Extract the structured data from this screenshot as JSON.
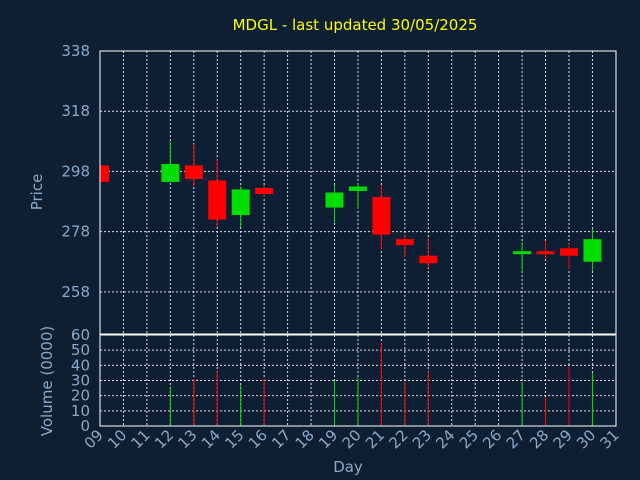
{
  "chart_data": {
    "type": "candlestick",
    "title": "MDGL - last updated 30/05/2025",
    "xlabel": "Day",
    "ylabel": "Price",
    "volume_ylabel": "Volume (0000)",
    "grid": true,
    "up_color": "#00dd00",
    "down_color": "#ff0000",
    "x_ticks": [
      "09",
      "10",
      "11",
      "12",
      "13",
      "14",
      "15",
      "16",
      "17",
      "18",
      "19",
      "20",
      "21",
      "22",
      "23",
      "24",
      "25",
      "26",
      "27",
      "28",
      "29",
      "30",
      "31"
    ],
    "price_ticks": [
      258,
      278,
      298,
      318,
      338
    ],
    "price_ylim": [
      244,
      338
    ],
    "volume_ticks": [
      0,
      10,
      20,
      30,
      40,
      50,
      60
    ],
    "volume_ylim": [
      0,
      60
    ],
    "candles": [
      {
        "day": 9,
        "open": 300.0,
        "high": 300.0,
        "low": 294.5,
        "close": 294.5
      },
      {
        "day": 12,
        "open": 294.5,
        "high": 308.0,
        "low": 294.5,
        "close": 300.5
      },
      {
        "day": 13,
        "open": 300.0,
        "high": 307.0,
        "low": 293.0,
        "close": 295.5
      },
      {
        "day": 14,
        "open": 295.0,
        "high": 302.0,
        "low": 279.5,
        "close": 282.0
      },
      {
        "day": 15,
        "open": 283.5,
        "high": 293.0,
        "low": 279.5,
        "close": 292.0
      },
      {
        "day": 16,
        "open": 292.5,
        "high": 293.5,
        "low": 289.5,
        "close": 290.5
      },
      {
        "day": 19,
        "open": 286.0,
        "high": 293.5,
        "low": 281.0,
        "close": 291.0
      },
      {
        "day": 20,
        "open": 291.5,
        "high": 294.0,
        "low": 285.5,
        "close": 293.0
      },
      {
        "day": 21,
        "open": 289.5,
        "high": 293.5,
        "low": 272.0,
        "close": 277.0
      },
      {
        "day": 22,
        "open": 275.5,
        "high": 277.0,
        "low": 269.5,
        "close": 273.5
      },
      {
        "day": 23,
        "open": 270.0,
        "high": 276.0,
        "low": 266.0,
        "close": 267.5
      },
      {
        "day": 27,
        "open": 270.5,
        "high": 274.5,
        "low": 265.0,
        "close": 271.5
      },
      {
        "day": 28,
        "open": 271.5,
        "high": 275.0,
        "low": 269.0,
        "close": 270.5
      },
      {
        "day": 29,
        "open": 272.5,
        "high": 274.0,
        "low": 265.5,
        "close": 270.0
      },
      {
        "day": 30,
        "open": 268.0,
        "high": 279.0,
        "low": 265.0,
        "close": 275.5
      }
    ],
    "volume": [
      {
        "day": 12,
        "value": 26
      },
      {
        "day": 13,
        "value": 31
      },
      {
        "day": 14,
        "value": 36
      },
      {
        "day": 15,
        "value": 27
      },
      {
        "day": 16,
        "value": 31
      },
      {
        "day": 19,
        "value": 30
      },
      {
        "day": 20,
        "value": 32
      },
      {
        "day": 21,
        "value": 55
      },
      {
        "day": 22,
        "value": 29
      },
      {
        "day": 23,
        "value": 36
      },
      {
        "day": 27,
        "value": 29
      },
      {
        "day": 28,
        "value": 19
      },
      {
        "day": 29,
        "value": 39
      },
      {
        "day": 30,
        "value": 35
      }
    ]
  }
}
